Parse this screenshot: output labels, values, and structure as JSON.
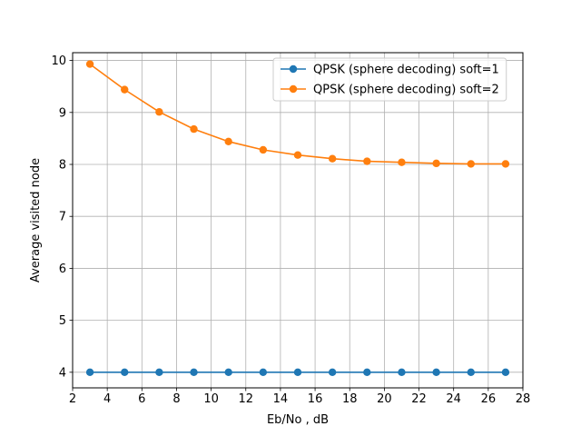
{
  "chart_data": {
    "type": "line",
    "title": "",
    "xlabel": "Eb/No , dB",
    "ylabel": "Average visited node",
    "xlim": [
      2,
      28
    ],
    "ylim": [
      3.7,
      10.15
    ],
    "xticks": [
      2,
      4,
      6,
      8,
      10,
      12,
      14,
      16,
      18,
      20,
      22,
      24,
      26,
      28
    ],
    "yticks": [
      4,
      5,
      6,
      7,
      8,
      9,
      10
    ],
    "grid": true,
    "legend_position": "top-right",
    "x": [
      3,
      5,
      7,
      9,
      11,
      13,
      15,
      17,
      19,
      21,
      23,
      25,
      27
    ],
    "series": [
      {
        "name": "QPSK (sphere decoding) soft=1",
        "color": "#1f77b4",
        "marker": "circle",
        "values": [
          4,
          4,
          4,
          4,
          4,
          4,
          4,
          4,
          4,
          4,
          4,
          4,
          4
        ]
      },
      {
        "name": "QPSK (sphere decoding) soft=2",
        "color": "#ff7f0e",
        "marker": "circle",
        "values": [
          9.93,
          9.44,
          9.01,
          8.68,
          8.44,
          8.28,
          8.18,
          8.11,
          8.06,
          8.04,
          8.02,
          8.01,
          8.01
        ]
      }
    ]
  }
}
